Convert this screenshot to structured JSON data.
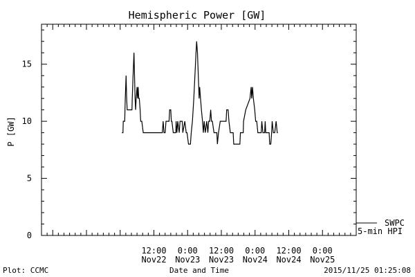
{
  "chart_data": {
    "type": "line",
    "title": "Hemispheric Power [GW]",
    "xlabel": "Date and Time",
    "ylabel": "P [GW]",
    "ylim": [
      0,
      18.5
    ],
    "xlim": [
      -28,
      84
    ],
    "grid": false,
    "x_units": "hours since 2015-11-22 00:00 UT",
    "x_ticks": [
      {
        "x": 12,
        "label1": "12:00",
        "label2": "Nov22"
      },
      {
        "x": 24,
        "label1": "0:00",
        "label2": "Nov23"
      },
      {
        "x": 36,
        "label1": "12:00",
        "label2": "Nov23"
      },
      {
        "x": 48,
        "label1": "0:00",
        "label2": "Nov24"
      },
      {
        "x": 60,
        "label1": "12:00",
        "label2": "Nov24"
      },
      {
        "x": 72,
        "label1": "0:00",
        "label2": "Nov25"
      }
    ],
    "y_ticks": [
      0,
      5,
      10,
      15
    ],
    "legend": [
      {
        "name": "SWPC",
        "placement": "bottom-right"
      },
      {
        "name": "5-min HPI",
        "placement": "bottom-right"
      }
    ],
    "series": [
      {
        "name": "SWPC",
        "values": [],
        "note_in_view": "no data shown"
      },
      {
        "name": "5-min HPI",
        "points": [
          [
            0.6,
            9
          ],
          [
            1.0,
            9
          ],
          [
            1.1,
            10
          ],
          [
            1.6,
            10
          ],
          [
            1.7,
            11
          ],
          [
            1.8,
            12
          ],
          [
            2.1,
            14
          ],
          [
            2.3,
            12
          ],
          [
            2.5,
            11
          ],
          [
            4.2,
            11
          ],
          [
            4.3,
            12
          ],
          [
            4.6,
            14
          ],
          [
            4.9,
            16
          ],
          [
            5.1,
            14
          ],
          [
            5.3,
            12
          ],
          [
            5.5,
            11
          ],
          [
            5.7,
            12
          ],
          [
            6.0,
            13
          ],
          [
            6.2,
            12
          ],
          [
            6.4,
            13
          ],
          [
            6.6,
            12
          ],
          [
            6.8,
            12
          ],
          [
            7.1,
            11
          ],
          [
            7.3,
            10
          ],
          [
            7.7,
            10
          ],
          [
            8.2,
            9
          ],
          [
            15.0,
            9
          ],
          [
            15.3,
            10
          ],
          [
            15.6,
            9
          ],
          [
            16.0,
            9
          ],
          [
            16.3,
            10
          ],
          [
            17.4,
            10
          ],
          [
            17.6,
            11
          ],
          [
            18.0,
            11
          ],
          [
            18.2,
            10
          ],
          [
            18.4,
            10
          ],
          [
            18.9,
            9
          ],
          [
            19.8,
            9
          ],
          [
            19.9,
            10
          ],
          [
            20.2,
            9
          ],
          [
            20.5,
            10
          ],
          [
            21.0,
            9
          ],
          [
            21.3,
            10
          ],
          [
            22.1,
            10
          ],
          [
            22.3,
            9
          ],
          [
            23.0,
            10
          ],
          [
            23.5,
            9
          ],
          [
            23.8,
            9
          ],
          [
            24.3,
            8
          ],
          [
            25.0,
            8
          ],
          [
            25.3,
            9
          ],
          [
            25.7,
            10
          ],
          [
            26.2,
            12
          ],
          [
            26.6,
            14
          ],
          [
            27.0,
            16
          ],
          [
            27.2,
            17
          ],
          [
            27.5,
            16
          ],
          [
            27.8,
            14
          ],
          [
            28.1,
            12
          ],
          [
            28.3,
            13
          ],
          [
            28.6,
            12
          ],
          [
            28.9,
            11
          ],
          [
            29.3,
            10
          ],
          [
            29.6,
            9
          ],
          [
            29.9,
            10
          ],
          [
            30.3,
            9
          ],
          [
            30.8,
            10
          ],
          [
            31.2,
            9
          ],
          [
            31.5,
            10
          ],
          [
            31.9,
            10
          ],
          [
            32.2,
            11
          ],
          [
            32.5,
            10
          ],
          [
            32.8,
            10
          ],
          [
            33.4,
            9
          ],
          [
            34.4,
            9
          ],
          [
            34.6,
            8
          ],
          [
            35.0,
            9
          ],
          [
            35.6,
            10
          ],
          [
            36.2,
            10
          ],
          [
            37.7,
            10
          ],
          [
            37.9,
            11
          ],
          [
            38.4,
            11
          ],
          [
            38.7,
            10
          ],
          [
            39.2,
            9
          ],
          [
            40.2,
            9
          ],
          [
            40.4,
            8
          ],
          [
            42.6,
            8
          ],
          [
            42.8,
            9
          ],
          [
            43.8,
            9
          ],
          [
            43.9,
            10
          ],
          [
            44.7,
            11
          ],
          [
            46.2,
            12
          ],
          [
            46.6,
            13
          ],
          [
            46.8,
            12
          ],
          [
            47.1,
            13
          ],
          [
            47.4,
            12
          ],
          [
            47.9,
            11
          ],
          [
            48.2,
            10
          ],
          [
            48.6,
            10
          ],
          [
            49.0,
            9
          ],
          [
            50.2,
            9
          ],
          [
            50.4,
            10
          ],
          [
            50.8,
            9
          ],
          [
            51.4,
            9
          ],
          [
            51.6,
            10
          ],
          [
            51.8,
            9
          ],
          [
            53.0,
            9
          ],
          [
            53.2,
            8
          ],
          [
            53.6,
            8
          ],
          [
            53.9,
            9
          ],
          [
            54.1,
            10
          ],
          [
            54.5,
            9
          ],
          [
            55.0,
            9
          ],
          [
            55.5,
            10
          ],
          [
            55.9,
            9
          ],
          [
            56.1,
            9
          ]
        ]
      }
    ]
  },
  "annotations": {
    "footer_left": "Plot: CCMC",
    "footer_center": "Date and Time",
    "footer_right": "2015/11/25 01:25:08",
    "legend_swpc": "SWPC",
    "legend_hpi": "5-min HPI"
  }
}
